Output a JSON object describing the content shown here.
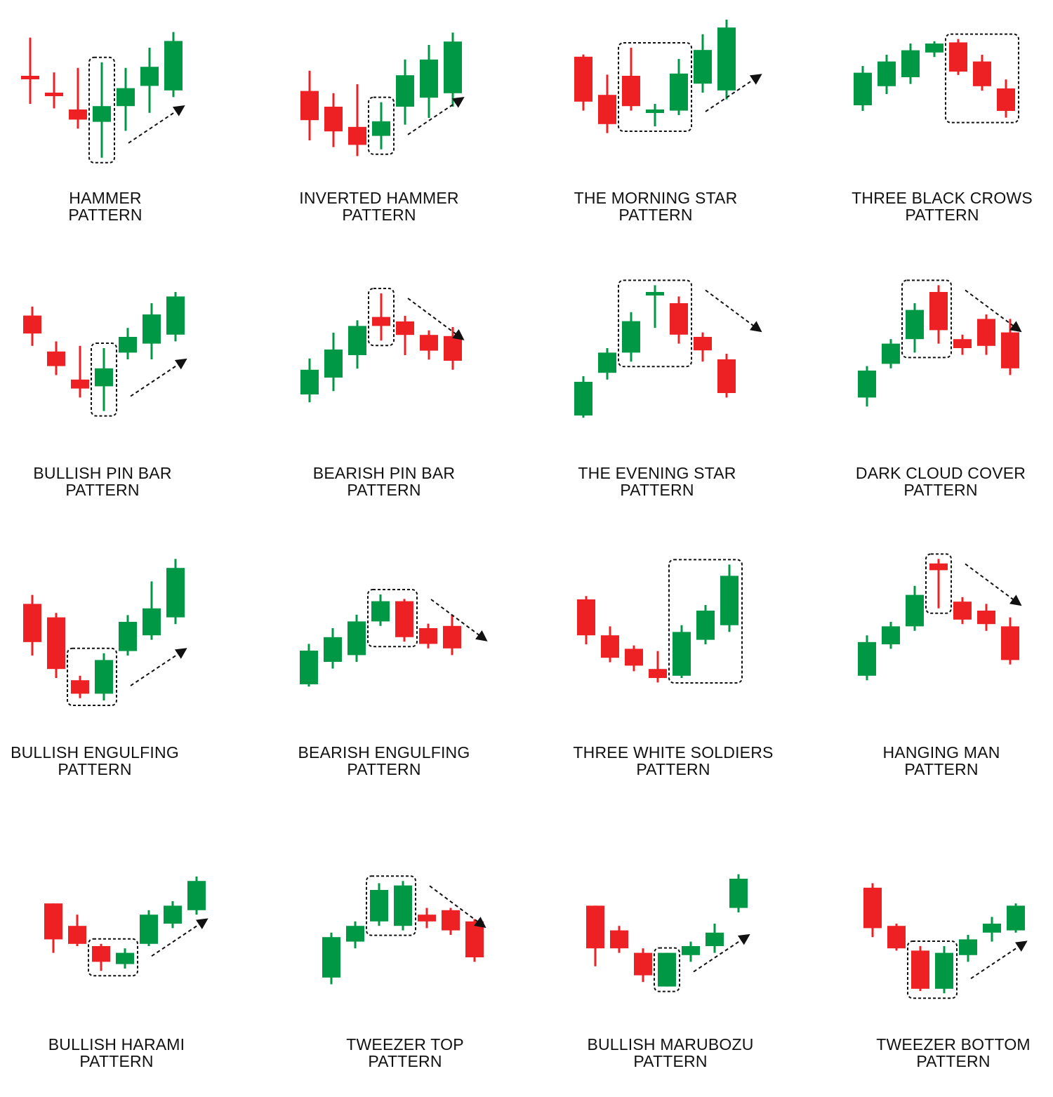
{
  "colors": {
    "bull": "#009845",
    "bear": "#ED2024",
    "outline": "#111111",
    "text": "#111111"
  },
  "panels": [
    {
      "id": "hammer",
      "line1": "HAMMER",
      "line2": "PATTERN",
      "candles": [
        [
          "bear",
          21,
          55,
          47,
          80
        ],
        [
          "bear",
          52,
          70,
          70,
          84
        ],
        [
          "bear",
          48,
          85,
          94,
          102
        ],
        [
          "bull",
          43,
          82,
          96,
          128
        ],
        [
          "bull",
          48,
          66,
          82,
          104
        ],
        [
          "bull",
          30,
          47,
          64,
          88
        ],
        [
          "bull",
          16,
          24,
          68,
          74
        ]
      ],
      "highlight": [
        3,
        3
      ],
      "arrow": "up"
    },
    {
      "id": "inverted-hammer",
      "line1": "INVERTED HAMMER",
      "line2": "PATTERN",
      "candles": [
        [
          "bear",
          38,
          56,
          82,
          100
        ],
        [
          "bear",
          58,
          70,
          92,
          106
        ],
        [
          "bear",
          50,
          88,
          104,
          114
        ],
        [
          "bull",
          66,
          83,
          96,
          108
        ],
        [
          "bull",
          28,
          42,
          70,
          86
        ],
        [
          "bull",
          15,
          28,
          62,
          80
        ],
        [
          "bull",
          4,
          12,
          58,
          70
        ]
      ],
      "highlight": [
        3,
        3
      ],
      "arrow": "up"
    },
    {
      "id": "morning-star",
      "line1": "THE MORNING STAR",
      "line2": "PATTERN",
      "candles": [
        [
          "bear",
          36,
          38,
          78,
          86
        ],
        [
          "bear",
          54,
          72,
          98,
          106
        ],
        [
          "bear",
          30,
          55,
          82,
          86
        ],
        [
          "bull",
          80,
          85,
          87,
          100
        ],
        [
          "bull",
          40,
          53,
          86,
          90
        ],
        [
          "bull",
          18,
          32,
          62,
          70
        ],
        [
          "bull",
          5,
          12,
          68,
          76
        ]
      ],
      "highlight": [
        2,
        4
      ],
      "arrow": "up"
    },
    {
      "id": "three-black-crows",
      "line1": "THREE BLACK CROWS",
      "line2": "PATTERN",
      "candles": [
        [
          "bull",
          40,
          46,
          75,
          80
        ],
        [
          "bull",
          30,
          36,
          58,
          65
        ],
        [
          "bull",
          20,
          26,
          50,
          56
        ],
        [
          "bull",
          18,
          20,
          28,
          32
        ],
        [
          "bear",
          16,
          19,
          45,
          48
        ],
        [
          "bear",
          30,
          36,
          58,
          62
        ],
        [
          "bear",
          52,
          60,
          80,
          86
        ]
      ],
      "highlight": [
        4,
        6
      ],
      "arrow": null
    },
    {
      "id": "bullish-pin-bar",
      "line1": "BULLISH PIN BAR",
      "line2": "PATTERN",
      "candles": [
        [
          "bear",
          23,
          31,
          47,
          58
        ],
        [
          "bear",
          54,
          63,
          76,
          84
        ],
        [
          "bear",
          58,
          88,
          96,
          104
        ],
        [
          "bull",
          60,
          78,
          94,
          116
        ],
        [
          "bull",
          42,
          50,
          64,
          70
        ],
        [
          "bull",
          20,
          30,
          56,
          70
        ],
        [
          "bull",
          10,
          14,
          48,
          54
        ]
      ],
      "highlight": [
        3,
        3
      ],
      "arrow": "up"
    },
    {
      "id": "bearish-pin-bar",
      "line1": "BEARISH PIN BAR",
      "line2": "PATTERN",
      "candles": [
        [
          "bull",
          63,
          73,
          95,
          102
        ],
        [
          "bull",
          40,
          55,
          80,
          92
        ],
        [
          "bull",
          29,
          34,
          60,
          72
        ],
        [
          "bear",
          5,
          26,
          34,
          47
        ],
        [
          "bear",
          25,
          30,
          42,
          60
        ],
        [
          "bear",
          38,
          42,
          56,
          64
        ],
        [
          "bear",
          35,
          43,
          65,
          73
        ]
      ],
      "highlight": [
        3,
        3
      ],
      "arrow": "down"
    },
    {
      "id": "evening-star",
      "line1": "THE EVENING STAR",
      "line2": "PATTERN",
      "candles": [
        [
          "bull",
          85,
          90,
          120,
          122
        ],
        [
          "bull",
          60,
          64,
          82,
          88
        ],
        [
          "bull",
          28,
          36,
          64,
          72
        ],
        [
          "bull",
          4,
          10,
          12,
          42
        ],
        [
          "bear",
          14,
          20,
          48,
          56
        ],
        [
          "bear",
          46,
          50,
          62,
          72
        ],
        [
          "bear",
          65,
          70,
          100,
          104
        ]
      ],
      "highlight": [
        2,
        4
      ],
      "arrow": "down"
    },
    {
      "id": "dark-cloud-cover",
      "line1": "DARK CLOUD COVER",
      "line2": "PATTERN",
      "candles": [
        [
          "bull",
          76,
          80,
          104,
          112
        ],
        [
          "bull",
          52,
          56,
          74,
          78
        ],
        [
          "bull",
          20,
          26,
          52,
          64
        ],
        [
          "bear",
          4,
          10,
          44,
          56
        ],
        [
          "bear",
          48,
          52,
          60,
          66
        ],
        [
          "bear",
          30,
          34,
          58,
          66
        ],
        [
          "bear",
          34,
          46,
          78,
          84
        ]
      ],
      "highlight": [
        2,
        3
      ],
      "arrow": "down"
    },
    {
      "id": "bullish-engulfing",
      "line1": "BULLISH ENGULFING",
      "line2": "PATTERN",
      "candles": [
        [
          "bear",
          36,
          44,
          78,
          90
        ],
        [
          "bear",
          52,
          56,
          102,
          110
        ],
        [
          "bear",
          108,
          112,
          124,
          128
        ],
        [
          "bull",
          88,
          94,
          124,
          130
        ],
        [
          "bull",
          54,
          60,
          86,
          90
        ],
        [
          "bull",
          24,
          48,
          72,
          76
        ],
        [
          "bull",
          4,
          12,
          56,
          62
        ]
      ],
      "highlight": [
        2,
        3
      ],
      "arrow": "up"
    },
    {
      "id": "bearish-engulfing",
      "line1": "BEARISH ENGULFING",
      "line2": "PATTERN",
      "candles": [
        [
          "bull",
          64,
          70,
          100,
          102
        ],
        [
          "bull",
          50,
          58,
          80,
          86
        ],
        [
          "bull",
          38,
          44,
          74,
          80
        ],
        [
          "bull",
          20,
          26,
          44,
          48
        ],
        [
          "bear",
          24,
          26,
          58,
          62
        ],
        [
          "bear",
          46,
          50,
          64,
          68
        ],
        [
          "bear",
          38,
          48,
          68,
          74
        ]
      ],
      "highlight": [
        3,
        4
      ],
      "arrow": "down"
    },
    {
      "id": "three-white-soldiers",
      "line1": "THREE WHITE SOLDIERS",
      "line2": "PATTERN",
      "candles": [
        [
          "bear",
          37,
          40,
          72,
          80
        ],
        [
          "bear",
          64,
          72,
          92,
          96
        ],
        [
          "bear",
          81,
          84,
          99,
          104
        ],
        [
          "bear",
          86,
          102,
          110,
          114
        ],
        [
          "bull",
          63,
          69,
          108,
          110
        ],
        [
          "bull",
          45,
          50,
          76,
          80
        ],
        [
          "bull",
          9,
          19,
          63,
          69
        ]
      ],
      "highlight": [
        4,
        6
      ],
      "arrow": null
    },
    {
      "id": "hanging-man",
      "line1": "HANGING MAN",
      "line2": "PATTERN",
      "candles": [
        [
          "bull",
          72,
          78,
          108,
          112
        ],
        [
          "bull",
          60,
          64,
          80,
          84
        ],
        [
          "bull",
          28,
          36,
          64,
          68
        ],
        [
          "bear",
          4,
          8,
          14,
          48
        ],
        [
          "bear",
          38,
          42,
          58,
          62
        ],
        [
          "bear",
          44,
          50,
          62,
          68
        ],
        [
          "bear",
          56,
          64,
          94,
          98
        ]
      ],
      "highlight": [
        3,
        3
      ],
      "arrow": "down"
    },
    {
      "id": "bullish-harami",
      "line1": "BULLISH HARAMI",
      "line2": "PATTERN",
      "candles": [
        [
          "bear",
          42,
          42,
          74,
          86
        ],
        [
          "bear",
          52,
          62,
          78,
          80
        ],
        [
          "bear",
          78,
          80,
          94,
          102
        ],
        [
          "bull",
          82,
          86,
          96,
          100
        ],
        [
          "bull",
          48,
          52,
          78,
          80
        ],
        [
          "bull",
          40,
          44,
          60,
          64
        ],
        [
          "bull",
          18,
          22,
          48,
          52
        ]
      ],
      "highlight": [
        2,
        3
      ],
      "arrow": "up"
    },
    {
      "id": "tweezer-top",
      "line1": "TWEEZER TOP",
      "line2": "PATTERN",
      "candles": [
        [
          "bull",
          68,
          72,
          108,
          114
        ],
        [
          "bull",
          58,
          62,
          76,
          82
        ],
        [
          "bull",
          24,
          30,
          58,
          62
        ],
        [
          "bull",
          22,
          26,
          62,
          66
        ],
        [
          "bear",
          46,
          52,
          58,
          64
        ],
        [
          "bear",
          46,
          48,
          66,
          70
        ],
        [
          "bear",
          56,
          58,
          90,
          94
        ]
      ],
      "highlight": [
        2,
        3
      ],
      "arrow": "down"
    },
    {
      "id": "bullish-marubozu",
      "line1": "BULLISH MARUBOZU",
      "line2": "PATTERN",
      "candles": [
        [
          "bear",
          44,
          44,
          82,
          98
        ],
        [
          "bear",
          62,
          66,
          82,
          86
        ],
        [
          "bear",
          82,
          86,
          106,
          112
        ],
        [
          "bull",
          86,
          86,
          116,
          116
        ],
        [
          "bull",
          76,
          80,
          88,
          94
        ],
        [
          "bull",
          60,
          68,
          80,
          86
        ],
        [
          "bull",
          16,
          20,
          46,
          50
        ]
      ],
      "highlight": [
        3,
        3
      ],
      "arrow": "up"
    },
    {
      "id": "tweezer-bottom",
      "line1": "TWEEZER BOTTOM",
      "line2": "PATTERN",
      "candles": [
        [
          "bear",
          24,
          28,
          64,
          72
        ],
        [
          "bear",
          60,
          62,
          82,
          84
        ],
        [
          "bear",
          80,
          84,
          118,
          120
        ],
        [
          "bull",
          80,
          86,
          118,
          122
        ],
        [
          "bull",
          70,
          74,
          88,
          94
        ],
        [
          "bull",
          54,
          60,
          68,
          76
        ],
        [
          "bull",
          42,
          44,
          66,
          68
        ]
      ],
      "highlight": [
        2,
        3
      ],
      "arrow": "up"
    }
  ]
}
